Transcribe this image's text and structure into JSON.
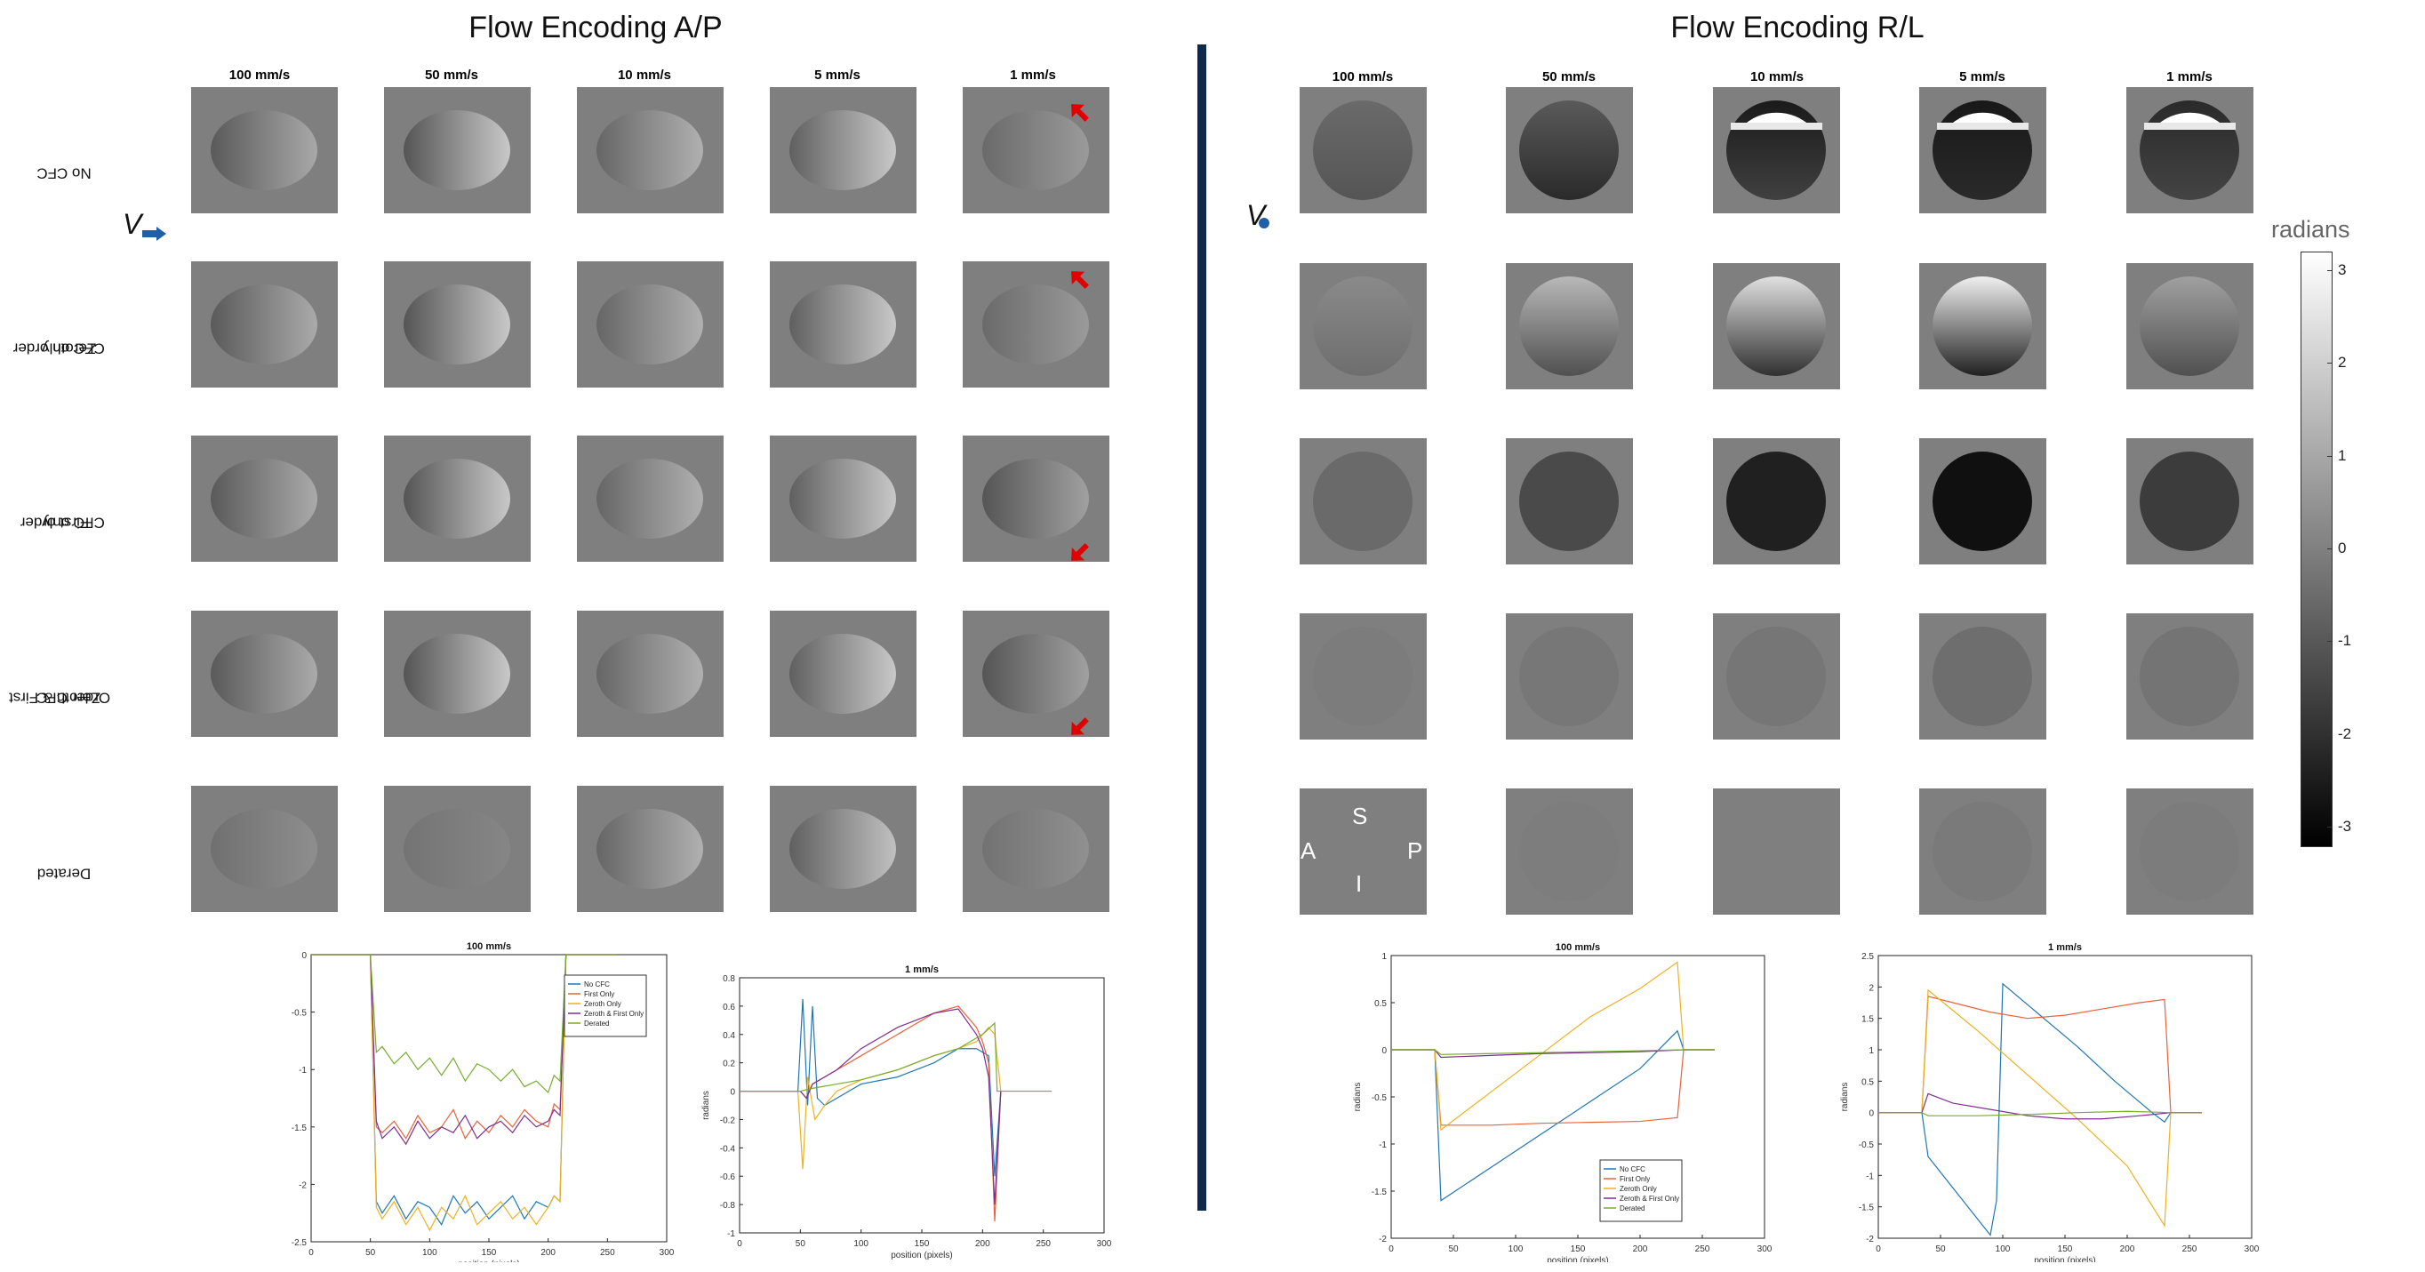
{
  "left_panel": {
    "title": "Flow Encoding A/P",
    "columns": [
      "100 mm/s",
      "50 mm/s",
      "10 mm/s",
      "5 mm/s",
      "1 mm/s"
    ],
    "rows": [
      {
        "l1": "No CFC",
        "l2": ""
      },
      {
        "l1": "Zeroth order",
        "l2": "CFC only"
      },
      {
        "l1": "First order",
        "l2": "CFC only"
      },
      {
        "l1": "Zeroth & First",
        "l2": "Order CFC"
      },
      {
        "l1": "Derated",
        "l2": ""
      }
    ],
    "v_label": "V"
  },
  "right_panel": {
    "title": "Flow Encoding R/L",
    "columns": [
      "100 mm/s",
      "50 mm/s",
      "10 mm/s",
      "5 mm/s",
      "1 mm/s"
    ],
    "v_label": "V",
    "orientation": {
      "s": "S",
      "a": "A",
      "p": "P",
      "i": "I"
    }
  },
  "colorbar": {
    "title": "radians",
    "ticks": [
      "3",
      "2",
      "1",
      "0",
      "-1",
      "-2",
      "-3"
    ],
    "tick_values": [
      3,
      2,
      1,
      0,
      -1,
      -2,
      -3
    ],
    "range": [
      -3.2,
      3.2
    ],
    "colors": [
      "#ffffff",
      "#000000"
    ]
  },
  "legend": [
    "No CFC",
    "First Only",
    "Zeroth Only",
    "Zeroth & First Only",
    "Derated"
  ],
  "series_colors": [
    "#1f77b4",
    "#e8633a",
    "#edb120",
    "#7e2f8e",
    "#77ac30"
  ],
  "chart_data": [
    {
      "type": "line",
      "title": "100 mm/s",
      "xlabel": "position (pixels)",
      "ylabel": "",
      "xlim": [
        0,
        300
      ],
      "ylim": [
        -2.5,
        0
      ],
      "xticks": [
        0,
        50,
        100,
        150,
        200,
        250,
        300
      ],
      "yticks": [
        0,
        -0.5,
        -1,
        -1.5,
        -2,
        -2.5
      ],
      "ytick_labels": [
        "0",
        "-0.5",
        "-1",
        "-1.5",
        "-2",
        "-2.5"
      ],
      "legend_position": "top-right",
      "series": [
        {
          "name": "No CFC",
          "x": [
            0,
            50,
            55,
            60,
            70,
            80,
            90,
            100,
            110,
            120,
            130,
            140,
            150,
            160,
            170,
            180,
            190,
            200,
            205,
            210,
            215,
            257
          ],
          "y": [
            0,
            0,
            -2.15,
            -2.25,
            -2.1,
            -2.3,
            -2.15,
            -2.2,
            -2.35,
            -2.1,
            -2.25,
            -2.15,
            -2.3,
            -2.2,
            -2.1,
            -2.3,
            -2.15,
            -2.2,
            -2.1,
            -2.15,
            0,
            0
          ]
        },
        {
          "name": "First Only",
          "x": [
            0,
            50,
            55,
            60,
            70,
            80,
            90,
            100,
            110,
            120,
            130,
            140,
            150,
            160,
            170,
            180,
            190,
            200,
            205,
            210,
            215,
            257
          ],
          "y": [
            0,
            0,
            -1.5,
            -1.55,
            -1.45,
            -1.6,
            -1.4,
            -1.55,
            -1.5,
            -1.35,
            -1.6,
            -1.45,
            -1.55,
            -1.4,
            -1.5,
            -1.35,
            -1.45,
            -1.5,
            -1.3,
            -1.35,
            0,
            0
          ]
        },
        {
          "name": "Zeroth Only",
          "x": [
            0,
            50,
            55,
            60,
            70,
            80,
            90,
            100,
            110,
            120,
            130,
            140,
            150,
            160,
            170,
            180,
            190,
            200,
            205,
            210,
            215,
            257
          ],
          "y": [
            0,
            0,
            -2.2,
            -2.3,
            -2.15,
            -2.35,
            -2.2,
            -2.4,
            -2.2,
            -2.3,
            -2.1,
            -2.35,
            -2.25,
            -2.15,
            -2.3,
            -2.2,
            -2.35,
            -2.2,
            -2.1,
            -2.15,
            0,
            0
          ]
        },
        {
          "name": "Zeroth & First Only",
          "x": [
            0,
            50,
            55,
            60,
            70,
            80,
            90,
            100,
            110,
            120,
            130,
            140,
            150,
            160,
            170,
            180,
            190,
            200,
            205,
            210,
            215,
            257
          ],
          "y": [
            0,
            0,
            -1.45,
            -1.6,
            -1.5,
            -1.65,
            -1.45,
            -1.6,
            -1.5,
            -1.55,
            -1.4,
            -1.6,
            -1.5,
            -1.45,
            -1.55,
            -1.4,
            -1.5,
            -1.45,
            -1.35,
            -1.4,
            0,
            0
          ]
        },
        {
          "name": "Derated",
          "x": [
            0,
            50,
            55,
            60,
            70,
            80,
            90,
            100,
            110,
            120,
            130,
            140,
            150,
            160,
            170,
            180,
            190,
            200,
            205,
            210,
            215,
            257
          ],
          "y": [
            0,
            0,
            -0.85,
            -0.8,
            -0.95,
            -0.85,
            -1.0,
            -0.9,
            -1.05,
            -0.9,
            -1.1,
            -0.95,
            -1.0,
            -1.1,
            -1.0,
            -1.15,
            -1.1,
            -1.2,
            -1.05,
            -1.1,
            0,
            0
          ]
        }
      ]
    },
    {
      "type": "line",
      "title": "1 mm/s",
      "xlabel": "position (pixels)",
      "ylabel": "radians",
      "xlim": [
        0,
        300
      ],
      "ylim": [
        -1.0,
        0.8
      ],
      "xticks": [
        0,
        50,
        100,
        150,
        200,
        250,
        300
      ],
      "yticks": [
        0.8,
        0.6,
        0.4,
        0.2,
        0,
        -0.2,
        -0.4,
        -0.6,
        -0.8,
        -1
      ],
      "ytick_labels": [
        "0.8",
        "0.6",
        "0.4",
        "0.2",
        "0",
        "-0.2",
        "-0.4",
        "-0.6",
        "-0.8",
        "-1"
      ],
      "series": [
        {
          "name": "No CFC",
          "x": [
            0,
            48,
            52,
            56,
            60,
            64,
            70,
            80,
            100,
            130,
            160,
            180,
            195,
            205,
            210,
            215
          ],
          "y": [
            0,
            0,
            0.65,
            -0.1,
            0.6,
            -0.05,
            -0.1,
            -0.05,
            0.05,
            0.1,
            0.2,
            0.3,
            0.3,
            0.25,
            -0.6,
            0
          ]
        },
        {
          "name": "First Only",
          "x": [
            0,
            50,
            55,
            60,
            70,
            80,
            100,
            130,
            160,
            180,
            195,
            200,
            205,
            210,
            215
          ],
          "y": [
            0,
            0,
            -0.05,
            0.05,
            0.1,
            0.15,
            0.25,
            0.4,
            0.55,
            0.6,
            0.45,
            0.35,
            0.2,
            -0.92,
            0
          ]
        },
        {
          "name": "Zeroth Only",
          "x": [
            0,
            48,
            52,
            56,
            62,
            70,
            80,
            100,
            130,
            160,
            180,
            195,
            205,
            210,
            215
          ],
          "y": [
            0,
            0,
            -0.55,
            0.1,
            -0.2,
            -0.1,
            0.0,
            0.08,
            0.15,
            0.25,
            0.3,
            0.35,
            0.45,
            0.4,
            0
          ]
        },
        {
          "name": "Zeroth & First Only",
          "x": [
            0,
            50,
            55,
            60,
            70,
            80,
            100,
            130,
            160,
            180,
            195,
            200,
            205,
            210,
            215
          ],
          "y": [
            0,
            0,
            -0.05,
            0.05,
            0.1,
            0.15,
            0.3,
            0.45,
            0.55,
            0.58,
            0.4,
            0.3,
            0.1,
            -0.8,
            0
          ]
        },
        {
          "name": "Derated",
          "x": [
            0,
            50,
            60,
            80,
            100,
            130,
            160,
            180,
            200,
            210,
            212,
            257
          ],
          "y": [
            0,
            0,
            0.02,
            0.05,
            0.08,
            0.15,
            0.25,
            0.3,
            0.4,
            0.48,
            0,
            0
          ]
        }
      ]
    },
    {
      "type": "line",
      "title": "100 mm/s",
      "xlabel": "position (pixels)",
      "ylabel": "radians",
      "xlim": [
        0,
        300
      ],
      "ylim": [
        -2,
        1
      ],
      "xticks": [
        0,
        50,
        100,
        150,
        200,
        250,
        300
      ],
      "yticks": [
        1,
        0.5,
        0,
        -0.5,
        -1,
        -1.5,
        -2
      ],
      "ytick_labels": [
        "1",
        "0.5",
        "0",
        "-0.5",
        "-1",
        "-1.5",
        "-2"
      ],
      "legend_position": "bottom-right",
      "series": [
        {
          "name": "No CFC",
          "x": [
            0,
            35,
            40,
            80,
            120,
            160,
            200,
            230,
            235,
            260
          ],
          "y": [
            0,
            0,
            -1.6,
            -1.25,
            -0.9,
            -0.55,
            -0.2,
            0.2,
            0,
            0
          ]
        },
        {
          "name": "First Only",
          "x": [
            0,
            35,
            40,
            80,
            120,
            160,
            200,
            230,
            235,
            260
          ],
          "y": [
            0,
            0,
            -0.8,
            -0.8,
            -0.78,
            -0.77,
            -0.76,
            -0.72,
            0,
            0
          ]
        },
        {
          "name": "Zeroth Only",
          "x": [
            0,
            35,
            40,
            80,
            120,
            160,
            200,
            230,
            235,
            260
          ],
          "y": [
            0,
            0,
            -0.85,
            -0.45,
            -0.05,
            0.35,
            0.65,
            0.93,
            0,
            0
          ]
        },
        {
          "name": "Zeroth & First Only",
          "x": [
            0,
            35,
            40,
            80,
            120,
            160,
            200,
            235,
            260
          ],
          "y": [
            0,
            0,
            -0.08,
            -0.06,
            -0.04,
            -0.03,
            -0.02,
            0,
            0
          ]
        },
        {
          "name": "Derated",
          "x": [
            0,
            35,
            40,
            80,
            120,
            160,
            200,
            235,
            260
          ],
          "y": [
            0,
            0,
            -0.05,
            -0.04,
            -0.03,
            -0.02,
            -0.01,
            0,
            0
          ]
        }
      ]
    },
    {
      "type": "line",
      "title": "1 mm/s",
      "xlabel": "position (pixels)",
      "ylabel": "radians",
      "xlim": [
        0,
        300
      ],
      "ylim": [
        -2,
        2.5
      ],
      "xticks": [
        0,
        50,
        100,
        150,
        200,
        250,
        300
      ],
      "yticks": [
        2.5,
        2,
        1.5,
        1,
        0.5,
        0,
        -0.5,
        -1,
        -1.5,
        -2
      ],
      "ytick_labels": [
        "2.5",
        "2",
        "1.5",
        "1",
        "0.5",
        "0",
        "-0.5",
        "-1",
        "-1.5",
        "-2"
      ],
      "series": [
        {
          "name": "No CFC",
          "x": [
            0,
            35,
            40,
            60,
            90,
            95,
            100,
            130,
            160,
            190,
            220,
            230,
            235,
            260
          ],
          "y": [
            0,
            0,
            -0.7,
            -1.2,
            -1.95,
            -1.4,
            2.05,
            1.55,
            1.05,
            0.5,
            0.0,
            -0.15,
            0,
            0
          ]
        },
        {
          "name": "First Only",
          "x": [
            0,
            35,
            40,
            60,
            90,
            120,
            150,
            180,
            210,
            230,
            235,
            260
          ],
          "y": [
            0,
            0,
            1.85,
            1.75,
            1.6,
            1.5,
            1.55,
            1.65,
            1.75,
            1.8,
            0,
            0
          ]
        },
        {
          "name": "Zeroth Only",
          "x": [
            0,
            35,
            40,
            80,
            120,
            160,
            200,
            230,
            235,
            260
          ],
          "y": [
            0,
            0,
            1.95,
            1.3,
            0.6,
            -0.1,
            -0.85,
            -1.8,
            0,
            0
          ]
        },
        {
          "name": "Zeroth & First Only",
          "x": [
            0,
            35,
            40,
            60,
            90,
            120,
            150,
            180,
            210,
            235,
            260
          ],
          "y": [
            0,
            0,
            0.3,
            0.15,
            0.05,
            -0.05,
            -0.1,
            -0.1,
            -0.05,
            0,
            0
          ]
        },
        {
          "name": "Derated",
          "x": [
            0,
            35,
            40,
            80,
            120,
            160,
            200,
            235,
            260
          ],
          "y": [
            0,
            0,
            -0.05,
            -0.05,
            -0.03,
            0.0,
            0.02,
            0,
            0
          ]
        }
      ]
    }
  ]
}
